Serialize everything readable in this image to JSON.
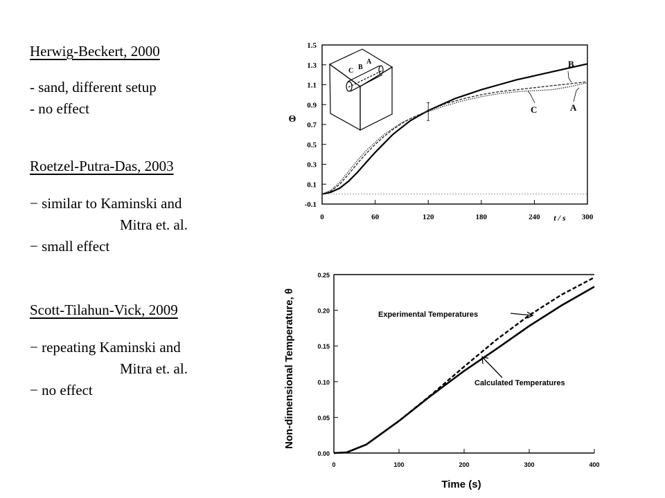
{
  "refs": [
    {
      "title": "Herwig-Beckert, 2000",
      "bullets": [
        "- sand, different setup",
        "- no effect"
      ]
    },
    {
      "title": "Roetzel-Putra-Das, 2003",
      "bullets": [
        "− similar to Kaminski and",
        "Mitra et. al.",
        "− small effect"
      ]
    },
    {
      "title": "Scott-Tilahun-Vick, 2009",
      "bullets": [
        "− repeating Kaminski and",
        "Mitra et. al.",
        "− no effect"
      ]
    }
  ],
  "chart_data": [
    {
      "type": "line",
      "ylabel": "Θ",
      "xlabel": "t / s",
      "xlim": [
        0,
        300
      ],
      "ylim": [
        -0.1,
        1.5
      ],
      "x_ticks": [
        "0",
        "60",
        "120",
        "180",
        "240",
        "300"
      ],
      "y_ticks": [
        "1.5",
        "1.3",
        "1.1",
        "0.9",
        "0.7",
        "0.5",
        "0.3",
        "0.1",
        "-0.1"
      ],
      "annotations": [
        "A",
        "B",
        "C"
      ],
      "inset_labels": [
        "C",
        "B",
        "A"
      ],
      "series": [
        {
          "name": "B",
          "x": [
            0,
            10,
            20,
            30,
            40,
            50,
            60,
            70,
            80,
            90,
            100,
            110,
            120,
            130,
            140,
            150,
            160,
            180,
            200,
            220,
            240,
            260,
            280,
            300
          ],
          "y": [
            0,
            0.02,
            0.06,
            0.13,
            0.22,
            0.32,
            0.42,
            0.51,
            0.6,
            0.67,
            0.74,
            0.79,
            0.84,
            0.88,
            0.92,
            0.96,
            0.99,
            1.05,
            1.1,
            1.15,
            1.19,
            1.23,
            1.27,
            1.31
          ]
        },
        {
          "name": "A",
          "x": [
            0,
            10,
            20,
            30,
            40,
            50,
            60,
            70,
            80,
            90,
            100,
            110,
            120,
            140,
            160,
            180,
            200,
            220,
            240,
            260,
            280,
            300
          ],
          "y": [
            0,
            0.03,
            0.1,
            0.2,
            0.31,
            0.41,
            0.5,
            0.58,
            0.65,
            0.71,
            0.76,
            0.8,
            0.84,
            0.91,
            0.96,
            1.0,
            1.03,
            1.05,
            1.07,
            1.09,
            1.11,
            1.13
          ]
        },
        {
          "name": "C",
          "x": [
            0,
            10,
            20,
            30,
            40,
            50,
            60,
            70,
            80,
            90,
            100,
            110,
            120,
            140,
            160,
            180,
            200,
            220,
            240,
            260,
            280,
            300
          ],
          "y": [
            0,
            0.04,
            0.12,
            0.23,
            0.34,
            0.44,
            0.52,
            0.6,
            0.66,
            0.72,
            0.76,
            0.8,
            0.83,
            0.89,
            0.94,
            0.98,
            1.01,
            1.03,
            1.04,
            1.05,
            1.08,
            1.12
          ]
        }
      ]
    },
    {
      "type": "line",
      "xlabel": "Time (s)",
      "ylabel": "Non-dimensional Temperature, θ",
      "xlim": [
        0,
        400
      ],
      "ylim": [
        0,
        0.25
      ],
      "x_ticks": [
        "0",
        "100",
        "200",
        "300",
        "400"
      ],
      "y_ticks": [
        "0.25",
        "0.20",
        "0.15",
        "0.10",
        "0.05",
        "0.00"
      ],
      "series": [
        {
          "name": "Experimental Temperatures",
          "x": [
            0,
            20,
            50,
            100,
            150,
            200,
            250,
            300,
            350,
            400
          ],
          "y": [
            0,
            0.001,
            0.012,
            0.045,
            0.082,
            0.121,
            0.159,
            0.193,
            0.222,
            0.246
          ]
        },
        {
          "name": "Calculated Temperatures",
          "x": [
            0,
            20,
            50,
            100,
            150,
            200,
            250,
            300,
            350,
            400
          ],
          "y": [
            0,
            0.001,
            0.012,
            0.045,
            0.081,
            0.115,
            0.146,
            0.178,
            0.207,
            0.233
          ]
        }
      ]
    }
  ]
}
